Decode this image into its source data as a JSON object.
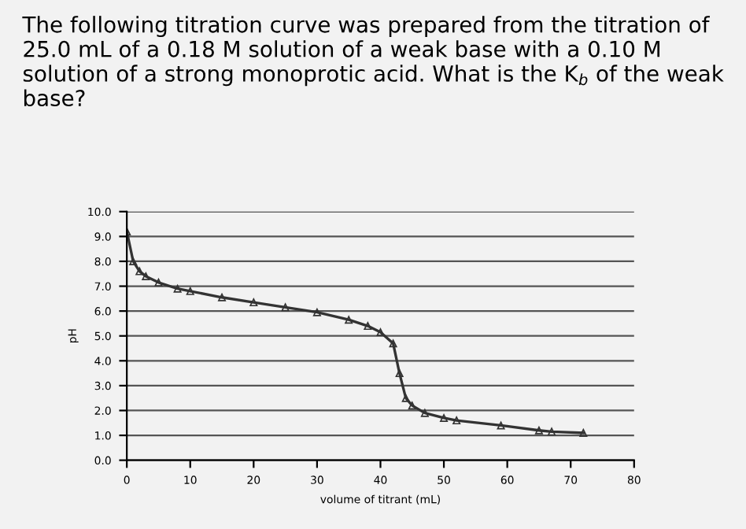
{
  "chart_data": {
    "type": "line",
    "title": "The following titration curve was prepared from the titration of 25.0 mL of a 0.18 M solution of a weak base with a 0.10 M solution of a strong monoprotic acid. What is the K$_{b}$ of the weak base?",
    "xlabel": "volume of titrant (mL)",
    "ylabel": "pH",
    "x": [
      0,
      1,
      2,
      3,
      5,
      8,
      10,
      15,
      20,
      25,
      30,
      35,
      38,
      40,
      42,
      43,
      44,
      45,
      47,
      50,
      52,
      59,
      65,
      67,
      72
    ],
    "series": [
      {
        "color": "#333333",
        "values": [
          9.2,
          8.0,
          7.6,
          7.4,
          7.15,
          6.9,
          6.8,
          6.55,
          6.35,
          6.15,
          5.95,
          5.65,
          5.4,
          5.15,
          4.7,
          3.5,
          2.5,
          2.2,
          1.9,
          1.7,
          1.6,
          1.4,
          1.2,
          1.15,
          1.1
        ]
      }
    ],
    "xlim": [
      0,
      80
    ],
    "xticks": [
      0,
      10,
      20,
      30,
      40,
      50,
      60,
      70,
      80
    ],
    "ylim": [
      0,
      10
    ],
    "yticks": [
      {
        "value": 0,
        "label": "0.0"
      },
      {
        "value": 1,
        "label": "1.0"
      },
      {
        "value": 2,
        "label": "2.0"
      },
      {
        "value": 3,
        "label": "3.0"
      },
      {
        "value": 4,
        "label": "4.0"
      },
      {
        "value": 5,
        "label": "5.0"
      },
      {
        "value": 6,
        "label": "6.0"
      },
      {
        "value": 7,
        "label": "7.0"
      },
      {
        "value": 8,
        "label": "8.0"
      },
      {
        "value": 9,
        "label": "9.0"
      },
      {
        "value": 10,
        "label": "10.0"
      }
    ],
    "grid": "y",
    "marker": "triangle",
    "line_style": "solid"
  }
}
